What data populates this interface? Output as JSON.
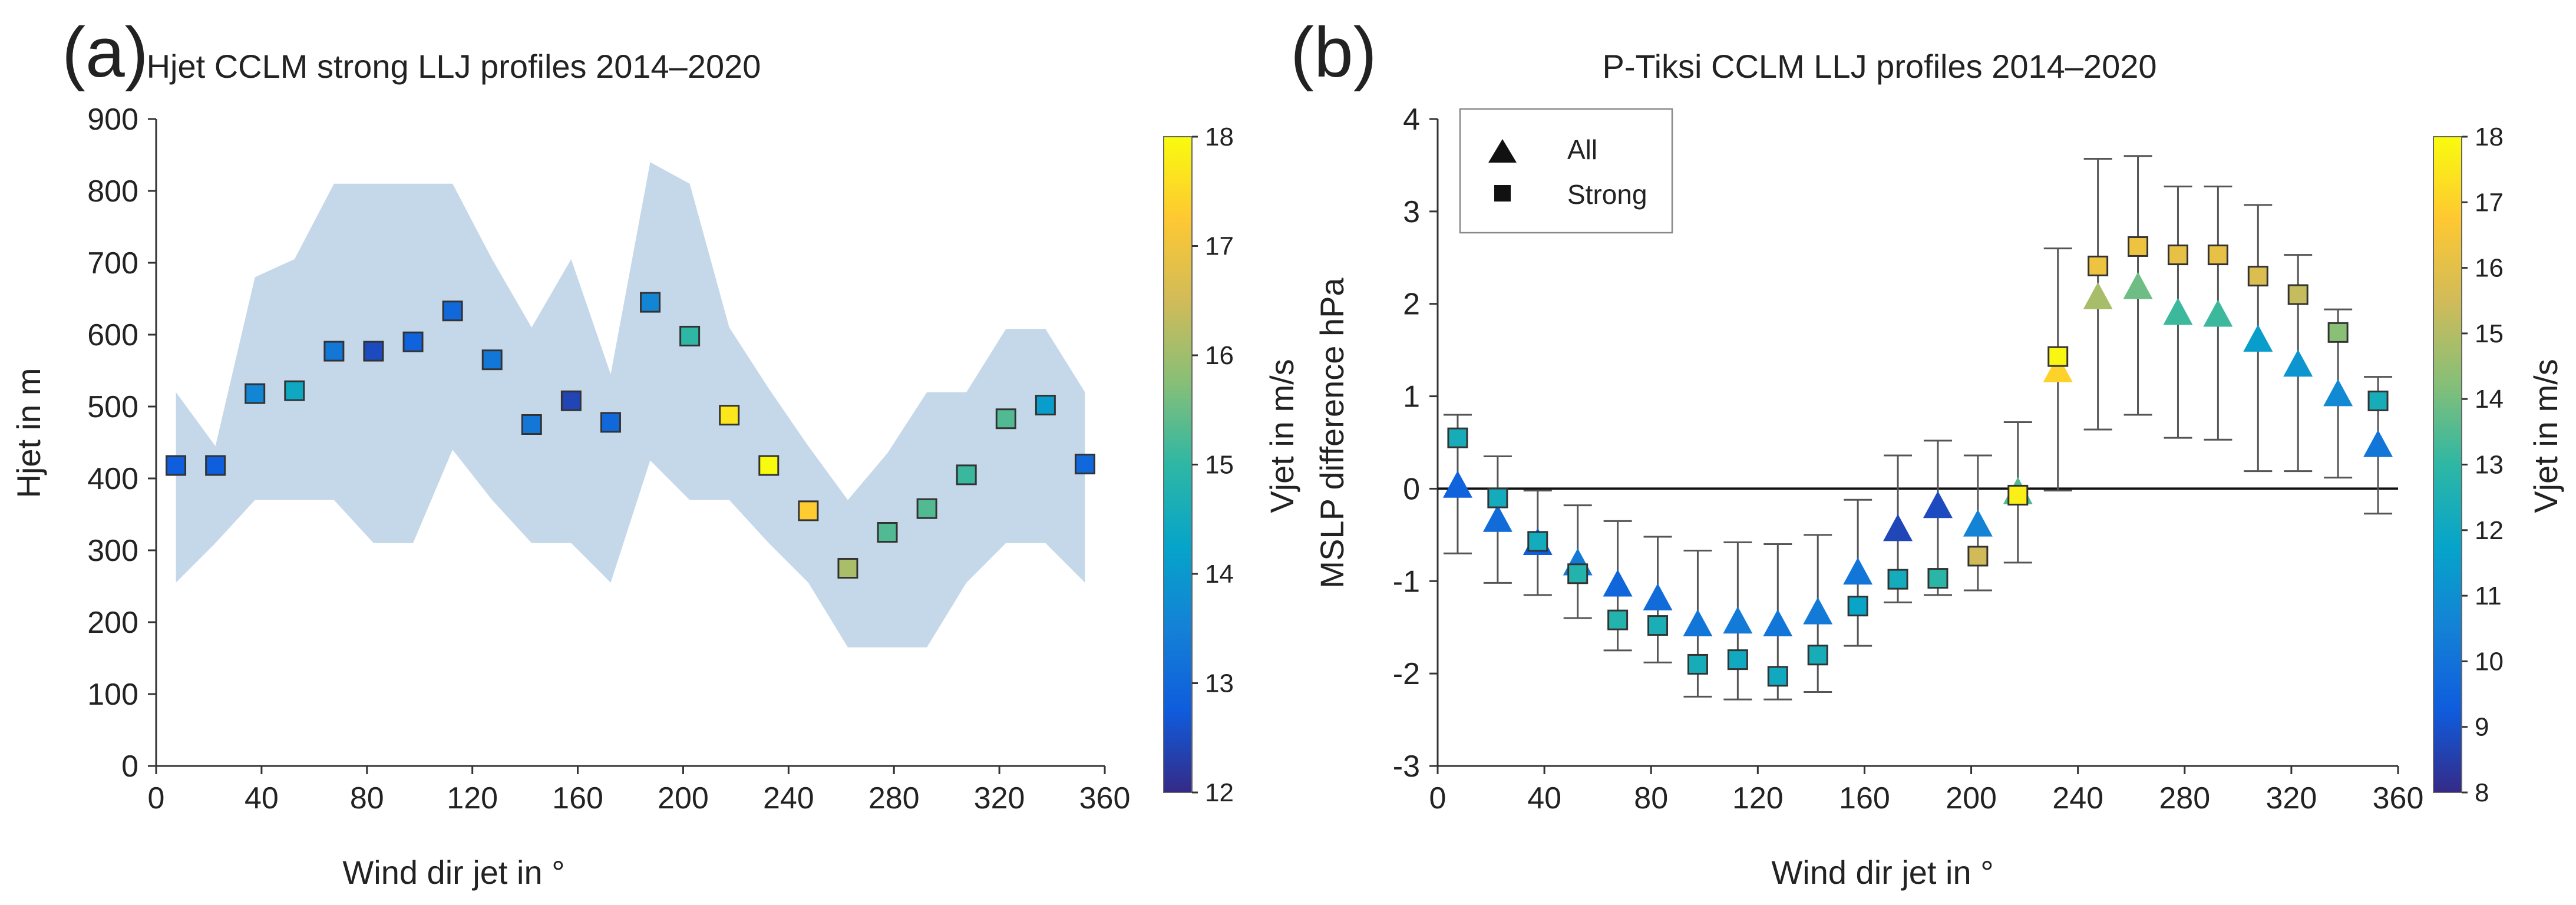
{
  "chart_data": [
    {
      "id": "a",
      "type": "scatter",
      "panel_label": "(a)",
      "title": "Hjet CCLM strong LLJ profiles 2014–2020",
      "xlabel": "Wind dir jet in °",
      "ylabel": "Hjet in m",
      "xlim": [
        0,
        360
      ],
      "ylim": [
        0,
        900
      ],
      "xticks": [
        0,
        40,
        80,
        120,
        160,
        200,
        240,
        280,
        320,
        360
      ],
      "yticks": [
        0,
        100,
        200,
        300,
        400,
        500,
        600,
        700,
        800,
        900
      ],
      "grid": false,
      "band_color": "#c5d8ea",
      "band": {
        "x": [
          7.5,
          22.5,
          37.5,
          52.5,
          67.5,
          82.5,
          97.5,
          112.5,
          127.5,
          142.5,
          157.5,
          172.5,
          187.5,
          202.5,
          217.5,
          232.5,
          247.5,
          262.5,
          277.5,
          292.5,
          307.5,
          322.5,
          337.5,
          352.5
        ],
        "upper": [
          520,
          445,
          680,
          705,
          810,
          810,
          810,
          810,
          705,
          610,
          705,
          545,
          840,
          810,
          610,
          525,
          445,
          370,
          435,
          520,
          520,
          608,
          608,
          520
        ],
        "lower": [
          255,
          310,
          370,
          370,
          370,
          310,
          310,
          440,
          370,
          310,
          310,
          255,
          425,
          370,
          370,
          310,
          255,
          165,
          165,
          165,
          255,
          310,
          310,
          255
        ]
      },
      "series": [
        {
          "name": "Strong",
          "marker": "square",
          "x": [
            7.5,
            22.5,
            37.5,
            52.5,
            67.5,
            82.5,
            97.5,
            112.5,
            127.5,
            142.5,
            157.5,
            172.5,
            187.5,
            202.5,
            217.5,
            232.5,
            247.5,
            262.5,
            277.5,
            292.5,
            307.5,
            322.5,
            337.5,
            352.5
          ],
          "y": [
            418,
            418,
            518,
            522,
            577,
            577,
            590,
            633,
            565,
            475,
            508,
            478,
            645,
            598,
            488,
            418,
            355,
            275,
            325,
            358,
            405,
            483,
            502,
            420
          ],
          "vjet": [
            12.8,
            12.8,
            13.6,
            14.4,
            13.3,
            12.5,
            12.9,
            13.0,
            13.3,
            13.3,
            12.4,
            13.0,
            13.6,
            15.0,
            17.7,
            18.0,
            17.3,
            16.1,
            15.3,
            15.3,
            15.1,
            15.3,
            14.1,
            13.0
          ]
        }
      ],
      "colorbar": {
        "label": "Vjet in m/s",
        "min": 12,
        "max": 18,
        "ticks": [
          12,
          13,
          14,
          15,
          16,
          17,
          18
        ]
      }
    },
    {
      "id": "b",
      "type": "scatter",
      "panel_label": "(b)",
      "title": "P-Tiksi CCLM LLJ profiles 2014–2020",
      "xlabel": "Wind dir jet in °",
      "ylabel": "MSLP difference hPa",
      "xlim": [
        0,
        360
      ],
      "ylim": [
        -3,
        4
      ],
      "xticks": [
        0,
        40,
        80,
        120,
        160,
        200,
        240,
        280,
        320,
        360
      ],
      "yticks": [
        -3,
        -2,
        -1,
        0,
        1,
        2,
        3,
        4
      ],
      "grid": false,
      "legend": {
        "position": "top-left",
        "entries": [
          "All",
          "Strong"
        ]
      },
      "series": [
        {
          "name": "All",
          "marker": "triangle",
          "x": [
            7.5,
            22.5,
            37.5,
            52.5,
            67.5,
            82.5,
            97.5,
            112.5,
            127.5,
            142.5,
            157.5,
            172.5,
            187.5,
            202.5,
            217.5,
            232.5,
            247.5,
            262.5,
            277.5,
            292.5,
            307.5,
            322.5,
            337.5,
            352.5
          ],
          "y": [
            0.02,
            -0.35,
            -0.6,
            -0.82,
            -1.05,
            -1.2,
            -1.48,
            -1.45,
            -1.48,
            -1.35,
            -0.92,
            -0.45,
            -0.2,
            -0.4,
            -0.05,
            1.27,
            2.06,
            2.17,
            1.89,
            1.87,
            1.6,
            1.33,
            1.01,
            0.46
          ],
          "vjet": [
            9.5,
            9.8,
            9.3,
            10.3,
            9.6,
            9.8,
            10.1,
            10.3,
            10.1,
            10.3,
            10.1,
            8.7,
            8.8,
            10.6,
            13.5,
            17.0,
            14.8,
            13.9,
            13.2,
            13.2,
            11.5,
            11.2,
            10.8,
            10.1
          ]
        },
        {
          "name": "Strong",
          "marker": "square",
          "x": [
            7.5,
            22.5,
            37.5,
            52.5,
            67.5,
            82.5,
            97.5,
            112.5,
            127.5,
            142.5,
            157.5,
            172.5,
            187.5,
            202.5,
            217.5,
            232.5,
            247.5,
            262.5,
            277.5,
            292.5,
            307.5,
            322.5,
            337.5,
            352.5
          ],
          "y": [
            0.55,
            -0.1,
            -0.57,
            -0.92,
            -1.42,
            -1.48,
            -1.9,
            -1.85,
            -2.03,
            -1.8,
            -1.27,
            -0.98,
            -0.97,
            -0.73,
            -0.07,
            1.43,
            2.41,
            2.62,
            2.53,
            2.53,
            2.3,
            2.1,
            1.69,
            0.95
          ],
          "err_low": [
            -0.7,
            -1.02,
            -1.15,
            -1.4,
            -1.75,
            -1.88,
            -2.25,
            -2.28,
            -2.28,
            -2.2,
            -1.7,
            -1.23,
            -1.15,
            -1.1,
            -0.8,
            -0.02,
            0.64,
            0.8,
            0.55,
            0.53,
            0.19,
            0.19,
            0.12,
            -0.27
          ],
          "err_high": [
            0.8,
            0.35,
            -0.02,
            -0.18,
            -0.35,
            -0.52,
            -0.67,
            -0.58,
            -0.6,
            -0.5,
            -0.12,
            0.36,
            0.52,
            0.36,
            0.72,
            2.6,
            3.57,
            3.6,
            3.27,
            3.27,
            3.07,
            2.53,
            1.94,
            1.21
          ],
          "vjet": [
            12.3,
            12.2,
            12.2,
            12.7,
            12.7,
            12.4,
            12.3,
            12.1,
            12.1,
            12.3,
            11.8,
            12.2,
            12.9,
            15.5,
            17.7,
            17.9,
            16.3,
            16.3,
            16.1,
            16.1,
            15.8,
            15.3,
            14.3,
            12.3
          ]
        }
      ],
      "colorbar": {
        "label": "Vjet in m/s",
        "min": 8,
        "max": 18,
        "ticks": [
          8,
          9,
          10,
          11,
          12,
          13,
          14,
          15,
          16,
          17,
          18
        ]
      }
    }
  ]
}
